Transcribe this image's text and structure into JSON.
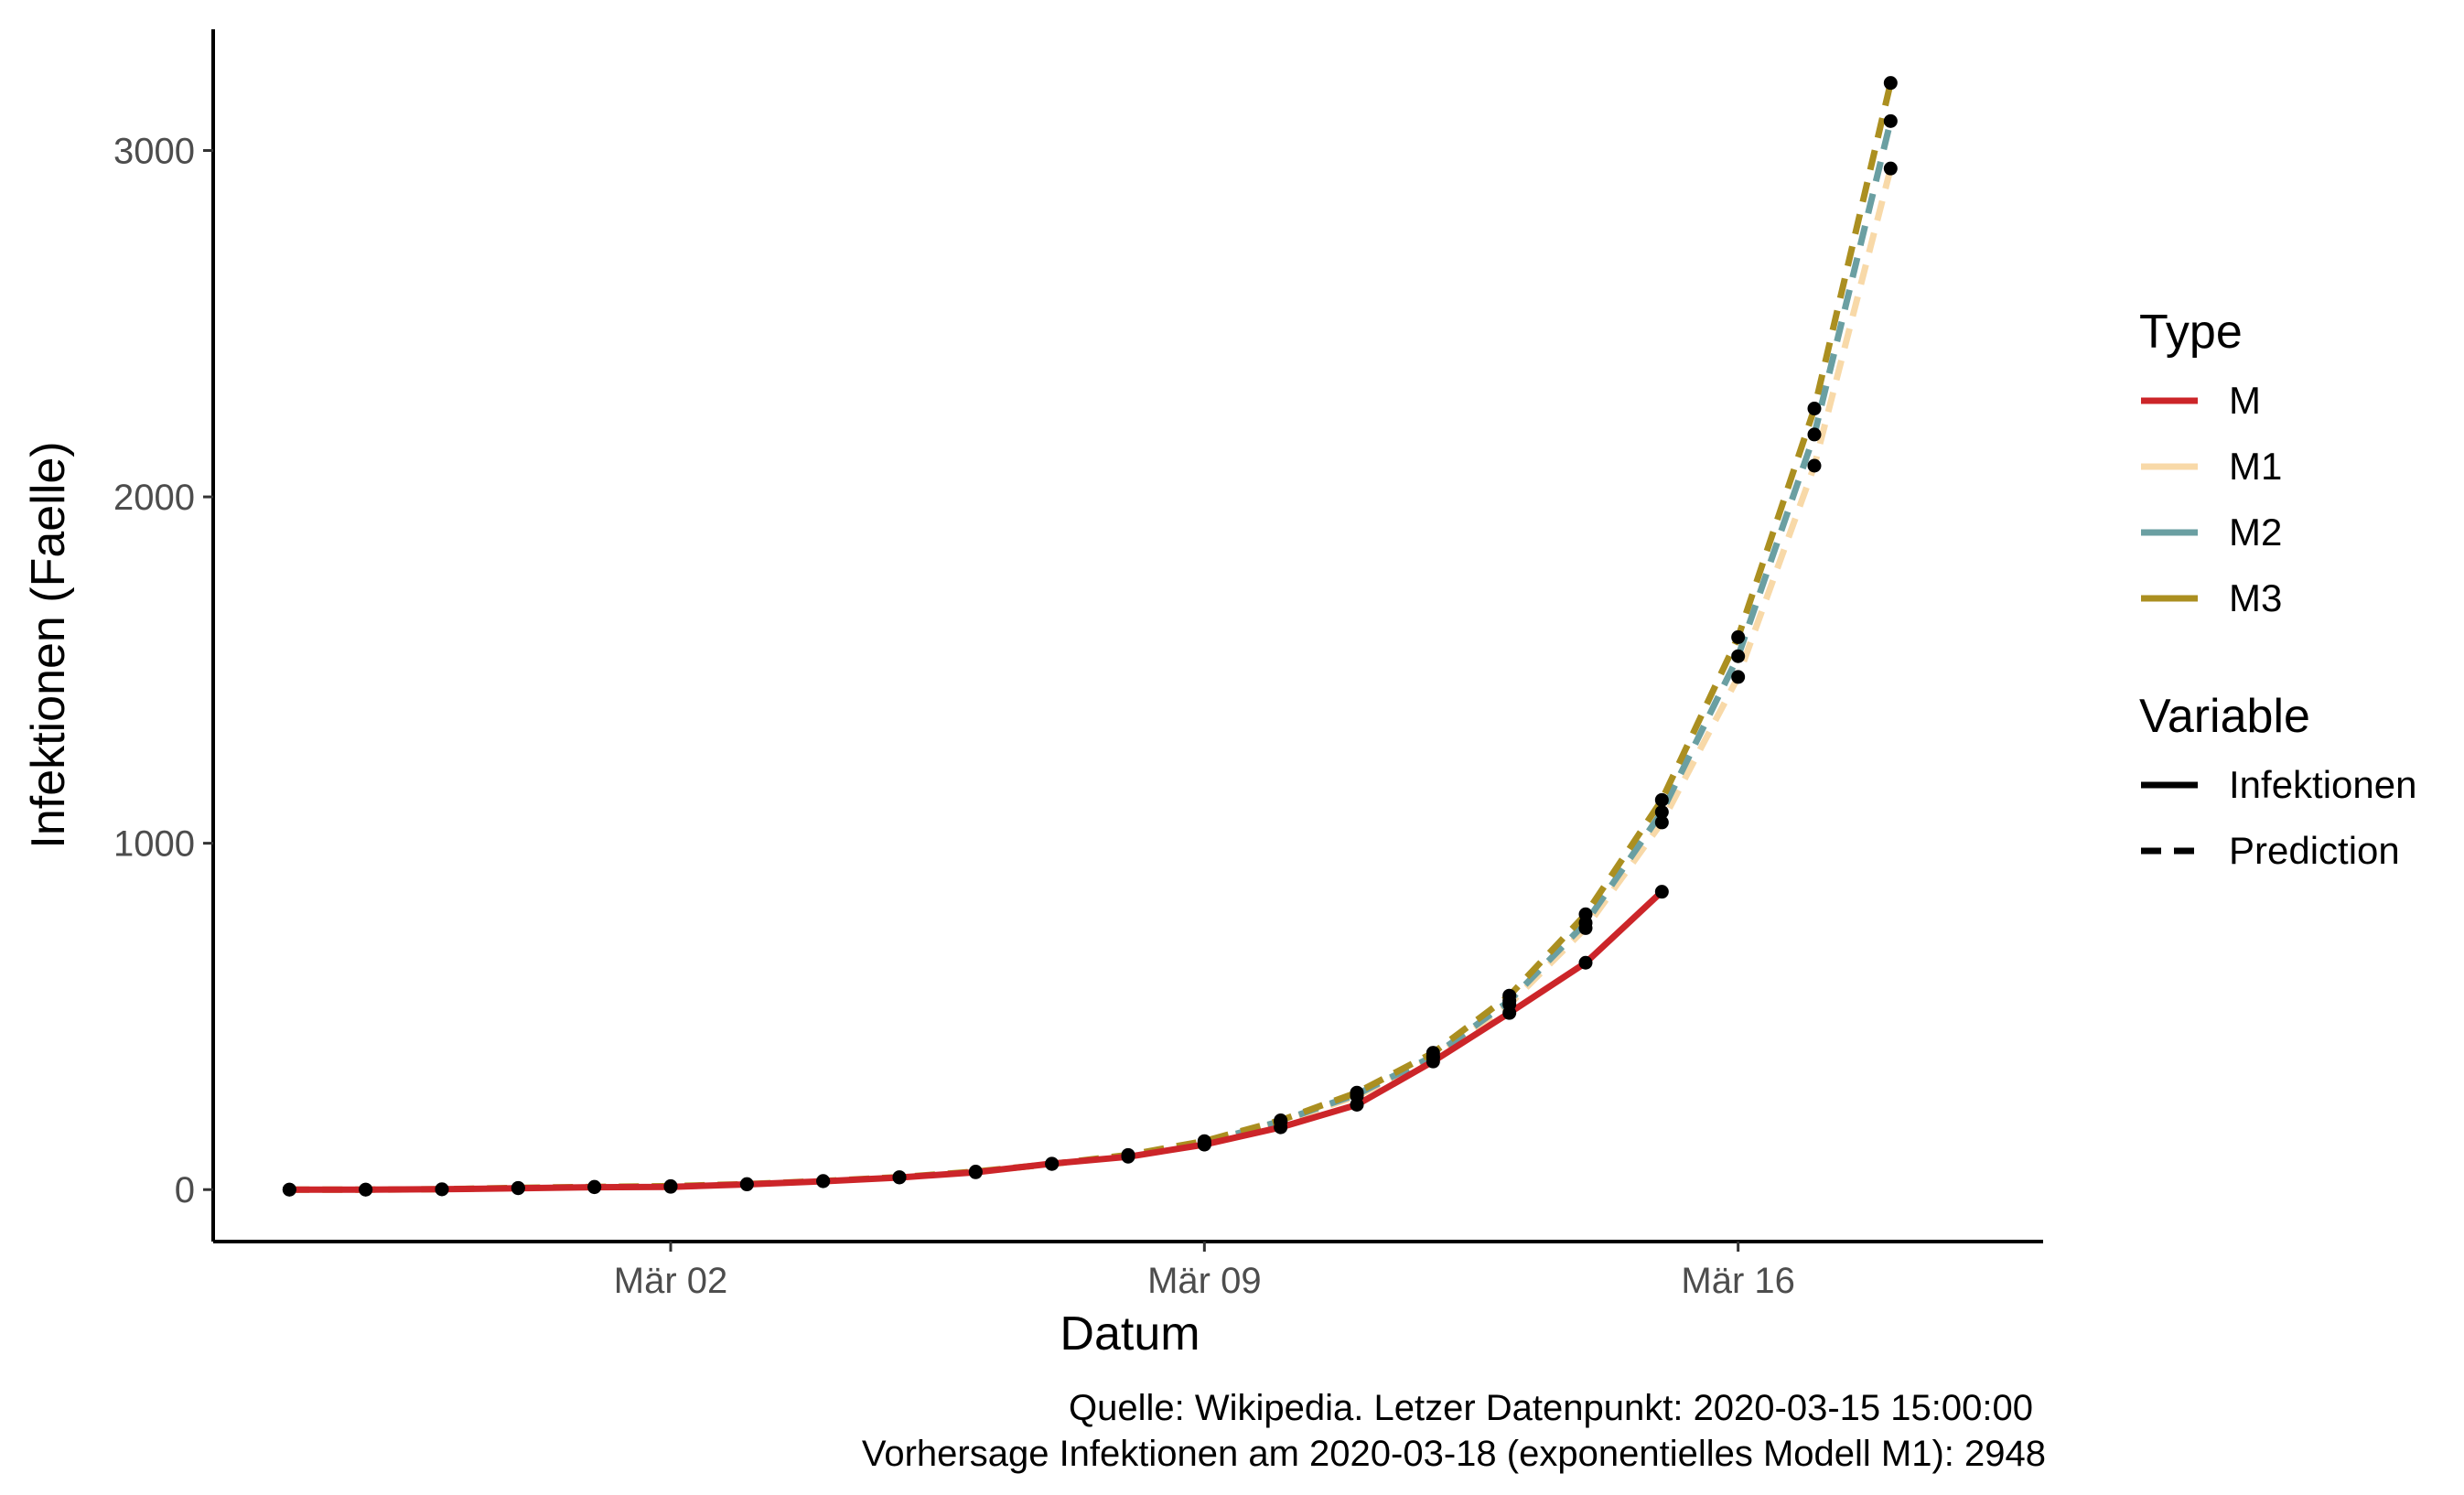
{
  "chart_data": {
    "type": "line",
    "title": "",
    "xlabel": "Datum",
    "ylabel": "Infektionen (Faelle)",
    "x_ticks": [
      {
        "date": "2020-03-02",
        "label": "Mär 02"
      },
      {
        "date": "2020-03-09",
        "label": "Mär 09"
      },
      {
        "date": "2020-03-16",
        "label": "Mär 16"
      }
    ],
    "y_ticks": [
      0,
      1000,
      2000,
      3000
    ],
    "xlim": [
      "2020-02-25",
      "2020-03-20"
    ],
    "ylim": [
      -150,
      3350
    ],
    "grid": false,
    "legend_placement": "right",
    "series": [
      {
        "name": "M",
        "variable": "Infektionen",
        "color": "#cc2529",
        "x": [
          "2020-02-26",
          "2020-02-27",
          "2020-02-28",
          "2020-02-29",
          "2020-03-01",
          "2020-03-02",
          "2020-03-03",
          "2020-03-04",
          "2020-03-05",
          "2020-03-06",
          "2020-03-07",
          "2020-03-08",
          "2020-03-09",
          "2020-03-10",
          "2020-03-11",
          "2020-03-12",
          "2020-03-13",
          "2020-03-14",
          "2020-03-15"
        ],
        "values": [
          0,
          0,
          1,
          4,
          7,
          8,
          15,
          24,
          35,
          50,
          75,
          95,
          130,
          180,
          245,
          370,
          510,
          655,
          860
        ]
      },
      {
        "name": "M1",
        "variable": "Prediction",
        "color": "#f8d9a8",
        "x": [
          "2020-03-09",
          "2020-03-10",
          "2020-03-11",
          "2020-03-12",
          "2020-03-13",
          "2020-03-14",
          "2020-03-15",
          "2020-03-16",
          "2020-03-17",
          "2020-03-18"
        ],
        "values": [
          130,
          195,
          270,
          380,
          535,
          755,
          1060,
          1480,
          2090,
          2948
        ]
      },
      {
        "name": "M2",
        "variable": "Prediction",
        "color": "#6a9fa2",
        "x": [
          "2020-03-09",
          "2020-03-10",
          "2020-03-11",
          "2020-03-12",
          "2020-03-13",
          "2020-03-14",
          "2020-03-15",
          "2020-03-16",
          "2020-03-17",
          "2020-03-18"
        ],
        "values": [
          135,
          198,
          275,
          385,
          545,
          770,
          1090,
          1540,
          2180,
          3085
        ]
      },
      {
        "name": "M3",
        "variable": "Prediction",
        "color": "#ab8f20",
        "x": [
          "2020-02-26",
          "2020-02-27",
          "2020-02-28",
          "2020-02-29",
          "2020-03-01",
          "2020-03-02",
          "2020-03-03",
          "2020-03-04",
          "2020-03-05",
          "2020-03-06",
          "2020-03-07",
          "2020-03-08",
          "2020-03-09",
          "2020-03-10",
          "2020-03-11",
          "2020-03-12",
          "2020-03-13",
          "2020-03-14",
          "2020-03-15",
          "2020-03-16",
          "2020-03-17",
          "2020-03-18"
        ],
        "values": [
          0,
          0,
          1,
          5,
          8,
          10,
          16,
          25,
          36,
          52,
          74,
          100,
          140,
          200,
          280,
          395,
          560,
          795,
          1125,
          1595,
          2255,
          3195
        ]
      }
    ],
    "legends": [
      {
        "title": "Type",
        "items": [
          {
            "label": "M",
            "color": "#cc2529",
            "style": "solid"
          },
          {
            "label": "M1",
            "color": "#f8d9a8",
            "style": "solid"
          },
          {
            "label": "M2",
            "color": "#6a9fa2",
            "style": "solid"
          },
          {
            "label": "M3",
            "color": "#ab8f20",
            "style": "solid"
          }
        ]
      },
      {
        "title": "Variable",
        "items": [
          {
            "label": "Infektionen",
            "color": "#000000",
            "style": "solid"
          },
          {
            "label": "Prediction",
            "color": "#000000",
            "style": "dashed"
          }
        ]
      }
    ],
    "caption_lines": [
      "Quelle: Wikipedia. Letzer Datenpunkt: 2020-03-15 15:00:00",
      "Vorhersage Infektionen am  2020-03-18  (exponentielles Modell M1):  2948"
    ]
  }
}
